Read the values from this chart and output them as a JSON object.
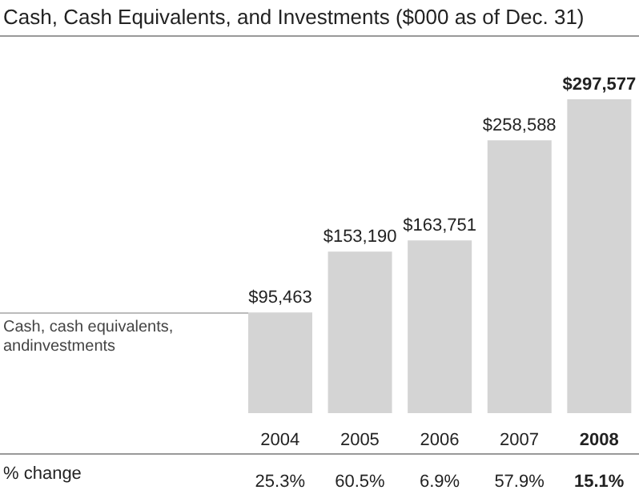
{
  "chart_data": {
    "type": "bar",
    "title": "Cash, Cash Equivalents, and Investments ($000 as of Dec. 31)",
    "categories": [
      "2004",
      "2005",
      "2006",
      "2007",
      "2008"
    ],
    "values": [
      95463,
      153190,
      163751,
      258588,
      297577
    ],
    "value_labels": [
      "$95,463",
      "$153,190",
      "$163,751",
      "$258,588",
      "$297,577"
    ],
    "color": "#d4d4d4",
    "annotations": [
      "Cash, cash equivalents, andinvestments",
      "% change",
      "25.3%",
      "60.5%",
      "6.9%",
      "57.9%",
      "15.1%"
    ],
    "grid": false,
    "legend": false
  }
}
